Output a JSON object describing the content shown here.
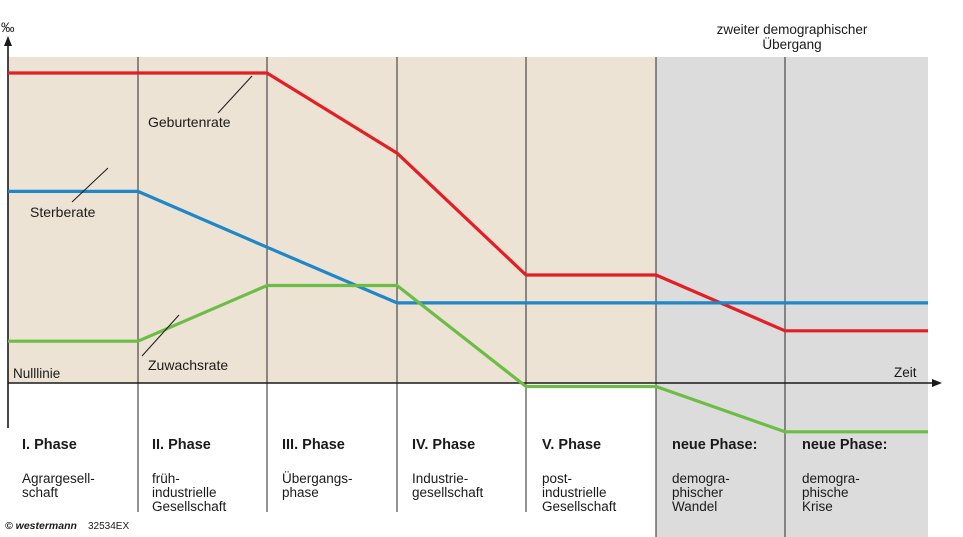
{
  "axes": {
    "y_label": "‰",
    "x_label": "Zeit",
    "zero_line_label": "Nulllinie"
  },
  "second_transition_label": [
    "zweiter demographischer",
    "Übergang"
  ],
  "curve_labels": {
    "birth": "Geburtenrate",
    "death": "Sterberate",
    "growth": "Zuwachsrate"
  },
  "colors": {
    "birth": "#e31e24",
    "death": "#1f86c8",
    "growth": "#6cbd45",
    "beige_bg": "#ece3d4",
    "grey_bg": "#dcdcdc"
  },
  "phases": [
    {
      "title": "I. Phase",
      "desc": [
        "Agrargesell-",
        "schaft"
      ]
    },
    {
      "title": "II. Phase",
      "desc": [
        "früh-",
        "industrielle",
        "Gesellschaft"
      ]
    },
    {
      "title": "III. Phase",
      "desc": [
        "Übergangs-",
        "phase"
      ]
    },
    {
      "title": "IV. Phase",
      "desc": [
        "Industrie-",
        "gesellschaft"
      ]
    },
    {
      "title": "V. Phase",
      "desc": [
        "post-",
        "industrielle",
        "Gesellschaft"
      ]
    },
    {
      "title": "neue Phase:",
      "desc": [
        "demogra-",
        "phischer",
        "Wandel"
      ]
    },
    {
      "title": "neue Phase:",
      "desc": [
        "demogra-",
        "phische",
        "Krise"
      ]
    }
  ],
  "copyright": {
    "symbol_brand": "© westermann",
    "code": "32534EX"
  },
  "chart_data": {
    "type": "line",
    "x": [
      "I. Phase start",
      "I/II",
      "II/III",
      "III/IV",
      "IV/V",
      "V/neue Phase",
      "neue Phase/neue Phase",
      "end"
    ],
    "series": [
      {
        "name": "Geburtenrate",
        "values": [
          89,
          89,
          89,
          66,
          31,
          31,
          15,
          15
        ]
      },
      {
        "name": "Sterberate",
        "values": [
          55,
          55,
          39,
          23,
          23,
          23,
          23,
          23
        ]
      },
      {
        "name": "Zuwachsrate",
        "values": [
          12,
          12,
          28,
          28,
          -1,
          -1,
          -14,
          -14
        ]
      }
    ],
    "ylabel": "‰",
    "xlabel": "Zeit",
    "ylim": [
      -16,
      93
    ]
  }
}
